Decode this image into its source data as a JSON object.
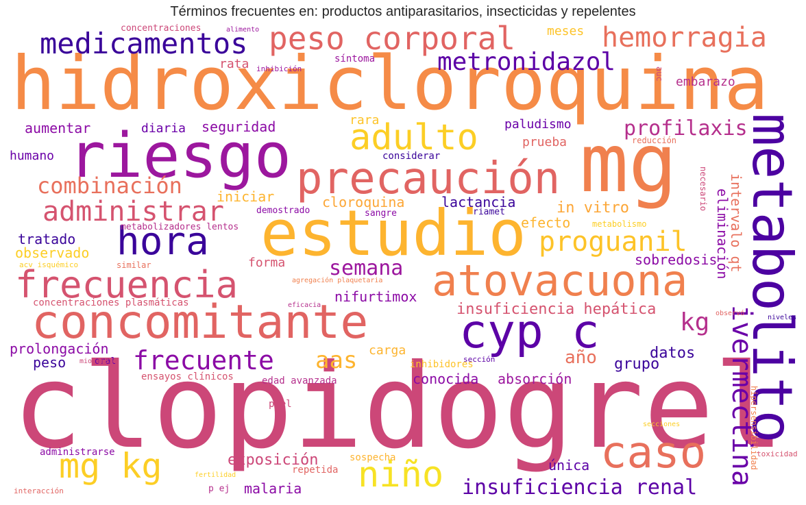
{
  "title": "Términos frecuentes en: productos antiparasitarios, insecticidas y repelentes",
  "words": [
    {
      "text": "hidroxicloroquina",
      "color": "#f58b47"
    },
    {
      "text": "clopidogrel",
      "color": "#cc4778"
    },
    {
      "text": "mg",
      "color": "#f0804e"
    },
    {
      "text": "riesgo",
      "color": "#9c179e"
    },
    {
      "text": "estudio",
      "color": "#fdb42f"
    },
    {
      "text": "metabolito",
      "color": "#4c02a1"
    },
    {
      "text": "precaución",
      "color": "#e16462"
    },
    {
      "text": "concomitante",
      "color": "#e16462"
    },
    {
      "text": "atovacuona",
      "color": "#f0804e"
    },
    {
      "text": "frecuencia",
      "color": "#d5536f"
    },
    {
      "text": "hora",
      "color": "#3a049a"
    },
    {
      "text": "cyp c",
      "color": "#5c01a6"
    },
    {
      "text": "adulto",
      "color": "#fcce25"
    },
    {
      "text": "peso corporal",
      "color": "#e16462"
    },
    {
      "text": "hemorragia",
      "color": "#e8705c"
    },
    {
      "text": "medicamentos",
      "color": "#3a049a"
    },
    {
      "text": "metronidazol",
      "color": "#5c01a6"
    },
    {
      "text": "caso",
      "color": "#e8705c"
    },
    {
      "text": "mg kg",
      "color": "#fcce25"
    },
    {
      "text": "niño",
      "color": "#f7e225"
    },
    {
      "text": "proguanil",
      "color": "#fdc328"
    },
    {
      "text": "administrar",
      "color": "#d5536f"
    },
    {
      "text": "combinación",
      "color": "#e8705c"
    },
    {
      "text": "frecuente",
      "color": "#8b0aa5"
    },
    {
      "text": "profilaxis",
      "color": "#b52f8c"
    },
    {
      "text": "ivermectina",
      "color": "#6a00a8"
    },
    {
      "text": "semana",
      "color": "#9c179e"
    },
    {
      "text": "aas",
      "color": "#fdb42f"
    },
    {
      "text": "insuficiencia renal",
      "color": "#5c01a6"
    },
    {
      "text": "kg",
      "color": "#b52f8c"
    },
    {
      "text": "insuficiencia hepática",
      "color": "#d5536f"
    },
    {
      "text": "exposición",
      "color": "#cc4778"
    },
    {
      "text": "año",
      "color": "#e8705c"
    },
    {
      "text": "nifurtimox",
      "color": "#8b0aa5"
    },
    {
      "text": "cloroquina",
      "color": "#fca636"
    },
    {
      "text": "conocida",
      "color": "#8b0aa5"
    },
    {
      "text": "absorción",
      "color": "#9c179e"
    },
    {
      "text": "malaria",
      "color": "#8b0aa5"
    },
    {
      "text": "única",
      "color": "#5c01a6"
    },
    {
      "text": "grupo",
      "color": "#3a049a"
    },
    {
      "text": "datos",
      "color": "#3a049a"
    },
    {
      "text": "carga",
      "color": "#fdb42f"
    },
    {
      "text": "prolongación",
      "color": "#8b0aa5"
    },
    {
      "text": "peso",
      "color": "#3a049a"
    },
    {
      "text": "tratado",
      "color": "#3a049a"
    },
    {
      "text": "observado",
      "color": "#fcce25"
    },
    {
      "text": "forma",
      "color": "#d5536f"
    },
    {
      "text": "sobredosis",
      "color": "#8b0aa5"
    },
    {
      "text": "eliminación",
      "color": "#8b0aa5"
    },
    {
      "text": "intervalo qt",
      "color": "#e8705c"
    },
    {
      "text": "in vitro",
      "color": "#fca636"
    },
    {
      "text": "efecto",
      "color": "#fdb42f"
    },
    {
      "text": "lactancia",
      "color": "#3a049a"
    },
    {
      "text": "iniciar",
      "color": "#fdb42f"
    },
    {
      "text": "seguridad",
      "color": "#8b0aa5"
    },
    {
      "text": "aumentar",
      "color": "#8b0aa5"
    },
    {
      "text": "diaria",
      "color": "#6a00a8"
    },
    {
      "text": "humano",
      "color": "#6a00a8"
    },
    {
      "text": "paludismo",
      "color": "#6a00a8"
    },
    {
      "text": "prueba",
      "color": "#e16462"
    },
    {
      "text": "rara",
      "color": "#fdc328"
    },
    {
      "text": "rata",
      "color": "#d5536f"
    },
    {
      "text": "embarazo",
      "color": "#b52f8c"
    },
    {
      "text": "meses",
      "color": "#fdc328"
    },
    {
      "text": "síntoma",
      "color": "#9c179e"
    },
    {
      "text": "considerar",
      "color": "#3a049a"
    },
    {
      "text": "demostrado",
      "color": "#8b0aa5"
    },
    {
      "text": "sangre",
      "color": "#8b0aa5"
    },
    {
      "text": "riamet",
      "color": "#3a049a"
    },
    {
      "text": "metabolismo",
      "color": "#fcce25"
    },
    {
      "text": "reducción",
      "color": "#e8705c"
    },
    {
      "text": "necesario",
      "color": "#cc4778"
    },
    {
      "text": "auc",
      "color": "#cc4778"
    },
    {
      "text": "inhibición",
      "color": "#9c179e"
    },
    {
      "text": "concentraciones",
      "color": "#cc4778"
    },
    {
      "text": "alimento",
      "color": "#9c179e"
    },
    {
      "text": "metabolizadores lentos",
      "color": "#b52f8c"
    },
    {
      "text": "acv isquémico",
      "color": "#fcce25"
    },
    {
      "text": "similar",
      "color": "#e8705c"
    },
    {
      "text": "agregación plaquetaria",
      "color": "#f0804e"
    },
    {
      "text": "concentraciones plasmáticas",
      "color": "#d5536f"
    },
    {
      "text": "eficacia",
      "color": "#b52f8c"
    },
    {
      "text": "observó",
      "color": "#e16462"
    },
    {
      "text": "niveles",
      "color": "#3a049a"
    },
    {
      "text": "inhibidores",
      "color": "#fdc328"
    },
    {
      "text": "sección",
      "color": "#5c01a6"
    },
    {
      "text": "oral",
      "color": "#6a00a8"
    },
    {
      "text": "miocardio",
      "color": "#cc4778"
    },
    {
      "text": "ensayos clínicos",
      "color": "#d5536f"
    },
    {
      "text": "edad avanzada",
      "color": "#b52f8c"
    },
    {
      "text": "piel",
      "color": "#cc4778"
    },
    {
      "text": "hipersensibilidad",
      "color": "#f0804e"
    },
    {
      "text": "secciones",
      "color": "#fcce25"
    },
    {
      "text": "administrarse",
      "color": "#8b0aa5"
    },
    {
      "text": "sospecha",
      "color": "#fdb42f"
    },
    {
      "text": "repetida",
      "color": "#e16462"
    },
    {
      "text": "fertilidad",
      "color": "#fcce25"
    },
    {
      "text": "p ej",
      "color": "#b52f8c"
    },
    {
      "text": "interacción",
      "color": "#e16462"
    },
    {
      "text": "toxicidad",
      "color": "#d5536f"
    }
  ]
}
